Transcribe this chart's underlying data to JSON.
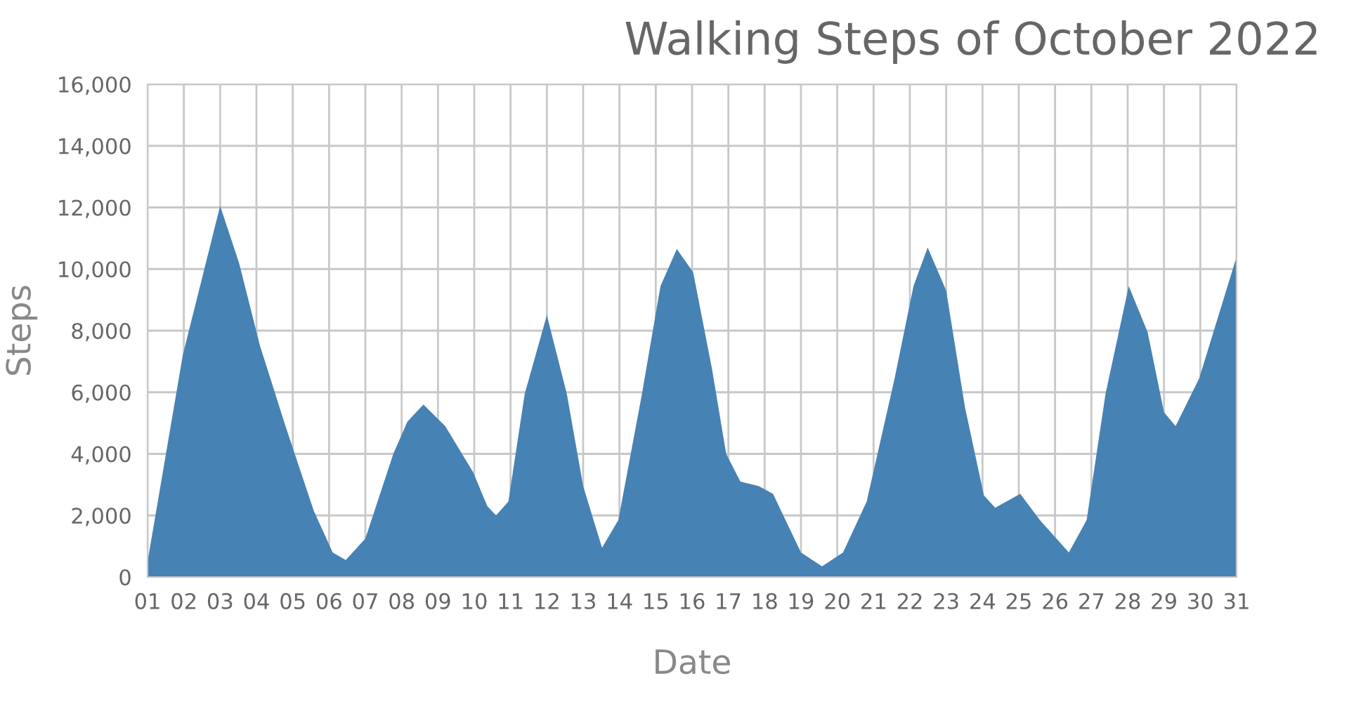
{
  "chart_data": {
    "type": "area",
    "title": "Walking Steps of October 2022",
    "xlabel": "Date",
    "ylabel": "Steps",
    "x": [
      1,
      1.97,
      3.0,
      3.52,
      4.1,
      4.8,
      5.58,
      6.1,
      6.46,
      7.0,
      7.77,
      8.16,
      8.6,
      9.2,
      9.97,
      10.36,
      10.6,
      10.94,
      11.39,
      12.0,
      12.55,
      13.0,
      13.52,
      13.97,
      14.62,
      15.13,
      15.58,
      16.03,
      16.55,
      16.94,
      17.33,
      17.84,
      18.23,
      19.0,
      19.58,
      20.16,
      20.81,
      21.58,
      22.1,
      22.49,
      23.0,
      23.52,
      24.04,
      24.35,
      25.04,
      25.58,
      26.38,
      26.87,
      27.39,
      28.03,
      28.55,
      29.0,
      29.32,
      29.97,
      31.0
    ],
    "series": [
      {
        "color": "#4682b4",
        "values": [
          500,
          7200,
          12050,
          10200,
          7500,
          4900,
          2150,
          800,
          550,
          1250,
          4000,
          5050,
          5600,
          4900,
          3400,
          2300,
          2000,
          2450,
          5950,
          8500,
          5950,
          2950,
          950,
          1850,
          5950,
          9450,
          10650,
          9900,
          6750,
          4000,
          3100,
          2950,
          2700,
          800,
          350,
          800,
          2450,
          6450,
          9450,
          10700,
          9300,
          5500,
          2650,
          2250,
          2700,
          1850,
          800,
          1850,
          5950,
          9450,
          7950,
          5350,
          4900,
          6450,
          10400
        ]
      }
    ],
    "xlim": [
      1,
      31
    ],
    "xticks": [
      {
        "value": 1,
        "label": "01"
      },
      {
        "value": 2,
        "label": "02"
      },
      {
        "value": 3,
        "label": "03"
      },
      {
        "value": 4,
        "label": "04"
      },
      {
        "value": 5,
        "label": "05"
      },
      {
        "value": 6,
        "label": "06"
      },
      {
        "value": 7,
        "label": "07"
      },
      {
        "value": 8,
        "label": "08"
      },
      {
        "value": 9,
        "label": "09"
      },
      {
        "value": 10,
        "label": "10"
      },
      {
        "value": 11,
        "label": "11"
      },
      {
        "value": 12,
        "label": "12"
      },
      {
        "value": 13,
        "label": "13"
      },
      {
        "value": 14,
        "label": "14"
      },
      {
        "value": 15,
        "label": "15"
      },
      {
        "value": 16,
        "label": "16"
      },
      {
        "value": 17,
        "label": "17"
      },
      {
        "value": 18,
        "label": "18"
      },
      {
        "value": 19,
        "label": "19"
      },
      {
        "value": 20,
        "label": "20"
      },
      {
        "value": 21,
        "label": "21"
      },
      {
        "value": 22,
        "label": "22"
      },
      {
        "value": 23,
        "label": "23"
      },
      {
        "value": 24,
        "label": "24"
      },
      {
        "value": 25,
        "label": "25"
      },
      {
        "value": 26,
        "label": "26"
      },
      {
        "value": 27,
        "label": "27"
      },
      {
        "value": 28,
        "label": "28"
      },
      {
        "value": 29,
        "label": "29"
      },
      {
        "value": 30,
        "label": "30"
      },
      {
        "value": 31,
        "label": "31"
      }
    ],
    "ylim": [
      0,
      16000
    ],
    "yticks": [
      {
        "value": 0,
        "label": "0"
      },
      {
        "value": 2000,
        "label": "2,000"
      },
      {
        "value": 4000,
        "label": "4,000"
      },
      {
        "value": 6000,
        "label": "6,000"
      },
      {
        "value": 8000,
        "label": "8,000"
      },
      {
        "value": 10000,
        "label": "10,000"
      },
      {
        "value": 12000,
        "label": "12,000"
      },
      {
        "value": 14000,
        "label": "14,000"
      },
      {
        "value": 16000,
        "label": "16,000"
      }
    ],
    "grid": true
  }
}
